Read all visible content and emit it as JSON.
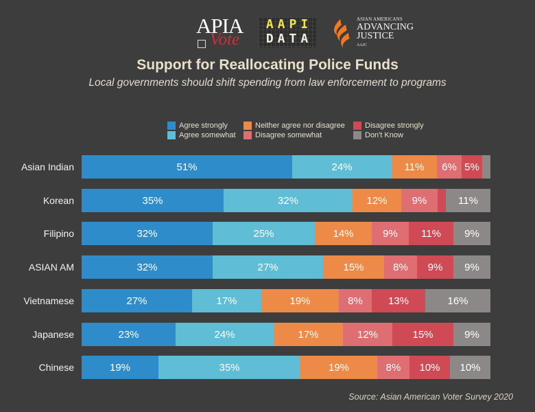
{
  "logos": {
    "apia_vote": {
      "line1": "APIA",
      "line2": "Vote"
    },
    "aapi_data": {
      "line1": "AAPI",
      "line2": "DATA"
    },
    "aajc": {
      "small": "ASIAN AMERICANS",
      "line1": "ADVANCING",
      "line2": "JUSTICE",
      "tiny": "AAJC"
    }
  },
  "chart_data": {
    "type": "bar",
    "orientation": "horizontal-stacked-100",
    "title": "Support for Reallocating Police Funds",
    "subtitle": "Local governments should shift spending from law enforcement to programs",
    "source": "Source: Asian American Voter Survey 2020",
    "legend_placement": "top-center",
    "xlabel": "",
    "ylabel": "",
    "xlim": [
      0,
      100
    ],
    "grid": false,
    "categories": [
      "Asian Indian",
      "Korean",
      "Filipino",
      "ASIAN AM",
      "Vietnamese",
      "Japanese",
      "Chinese"
    ],
    "series": [
      {
        "name": "Agree strongly",
        "color": "#2f8ccb",
        "values": [
          51,
          35,
          32,
          32,
          27,
          23,
          19
        ],
        "labels": [
          "51%",
          "35%",
          "32%",
          "32%",
          "27%",
          "23%",
          "19%"
        ]
      },
      {
        "name": "Agree somewhat",
        "color": "#5fbdd6",
        "values": [
          24,
          32,
          25,
          27,
          17,
          24,
          35
        ],
        "labels": [
          "24%",
          "32%",
          "25%",
          "27%",
          "17%",
          "24%",
          "35%"
        ]
      },
      {
        "name": "Neither agree nor disagree",
        "color": "#ee8a48",
        "values": [
          11,
          12,
          14,
          15,
          19,
          17,
          19
        ],
        "labels": [
          "11%",
          "12%",
          "14%",
          "15%",
          "19%",
          "17%",
          "19%"
        ]
      },
      {
        "name": "Disagree somewhat",
        "color": "#de6e72",
        "values": [
          6,
          9,
          9,
          8,
          8,
          12,
          8
        ],
        "labels": [
          "6%",
          "9%",
          "9%",
          "8%",
          "8%",
          "12%",
          "8%"
        ]
      },
      {
        "name": "Disagree strongly",
        "color": "#d04a55",
        "values": [
          5,
          2,
          11,
          9,
          13,
          15,
          10
        ],
        "labels": [
          "5%",
          "",
          "11%",
          "9%",
          "13%",
          "15%",
          "10%"
        ]
      },
      {
        "name": "Don't Know",
        "color": "#8c8888",
        "values": [
          2,
          11,
          9,
          9,
          16,
          9,
          10
        ],
        "labels": [
          "",
          "11%",
          "9%",
          "9%",
          "16%",
          "9%",
          "10%"
        ]
      }
    ],
    "legend_order": [
      {
        "series_index": 0
      },
      {
        "series_index": 1
      },
      {
        "series_index": 2
      },
      {
        "series_index": 3
      },
      {
        "series_index": 4
      },
      {
        "series_index": 5
      }
    ]
  },
  "colors": {
    "background": "#3d3d3d",
    "title": "#e8e0c8",
    "label_text": "#ffffff"
  }
}
